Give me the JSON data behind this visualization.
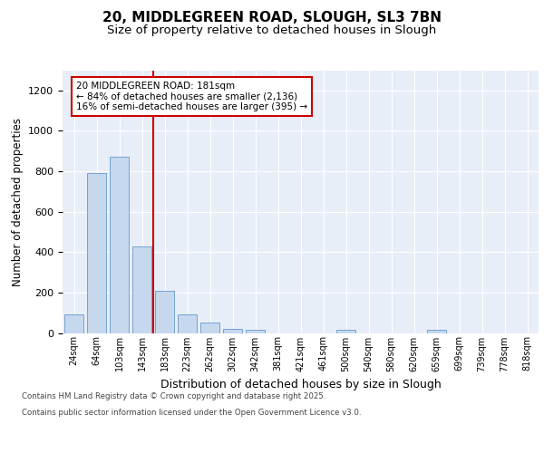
{
  "title": "20, MIDDLEGREEN ROAD, SLOUGH, SL3 7BN",
  "subtitle": "Size of property relative to detached houses in Slough",
  "xlabel": "Distribution of detached houses by size in Slough",
  "ylabel": "Number of detached properties",
  "categories": [
    "24sqm",
    "64sqm",
    "103sqm",
    "143sqm",
    "183sqm",
    "223sqm",
    "262sqm",
    "302sqm",
    "342sqm",
    "381sqm",
    "421sqm",
    "461sqm",
    "500sqm",
    "540sqm",
    "580sqm",
    "620sqm",
    "659sqm",
    "699sqm",
    "739sqm",
    "778sqm",
    "818sqm"
  ],
  "values": [
    90,
    790,
    870,
    430,
    210,
    90,
    52,
    20,
    15,
    0,
    0,
    0,
    15,
    0,
    0,
    0,
    15,
    0,
    0,
    0,
    0
  ],
  "bar_color": "#c5d8ee",
  "bar_edge_color": "#6699cc",
  "vline_color": "#cc0000",
  "vline_x": 3.5,
  "ann_line1": "20 MIDDLEGREEN ROAD: 181sqm",
  "ann_line2": "← 84% of detached houses are smaller (2,136)",
  "ann_line3": "16% of semi-detached houses are larger (395) →",
  "ann_edgecolor": "#cc0000",
  "ylim_max": 1300,
  "yticks": [
    0,
    200,
    400,
    600,
    800,
    1000,
    1200
  ],
  "bg_color": "#e8eef8",
  "footer1": "Contains HM Land Registry data © Crown copyright and database right 2025.",
  "footer2": "Contains public sector information licensed under the Open Government Licence v3.0."
}
